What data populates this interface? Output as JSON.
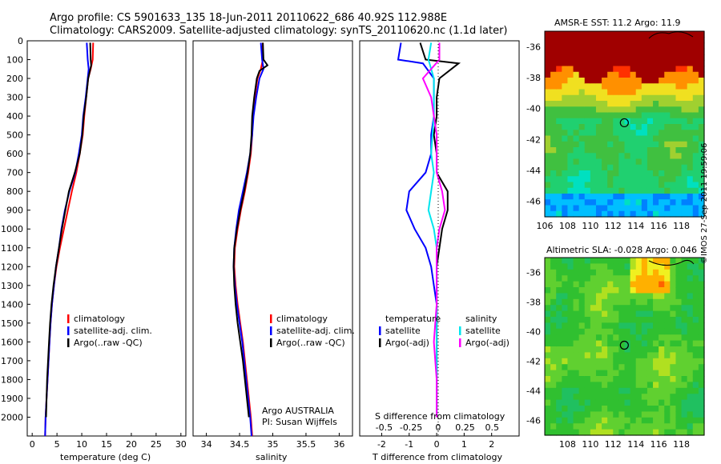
{
  "title_line1": "Argo profile: CS 5901633_135 18-Jun-2011 20110622_686 40.92S 112.988E",
  "title_line2": "Climatology: CARS2009. Satellite-adjusted climatology: synTS_20110620.nc (1.1d later)",
  "stamp": "©IMOS 27-Sep-2011 19:59:06",
  "colors": {
    "climatology": "#ff0000",
    "satellite": "#0000ff",
    "argo": "#000000",
    "sat_salinity": "#00e5ee",
    "argo_salinity_adj": "#ff00ff"
  },
  "legend": {
    "climatology": "climatology",
    "satellite_adj": "satellite-adj. clim.",
    "argo_raw": "Argo(..raw -QC)",
    "temperature_head": "temperature",
    "salinity_head": "salinity",
    "satellite": "satellite",
    "argo_adj": "Argo(-adj)"
  },
  "argo_note": {
    "line1": "Argo AUSTRALIA",
    "line2": "PI: Susan Wijffels"
  },
  "chart_data": [
    {
      "type": "line",
      "xlabel": "temperature (deg C)",
      "xlim": [
        -1,
        31
      ],
      "ylim": [
        2100,
        0
      ],
      "xticks": [
        0,
        5,
        10,
        15,
        20,
        25,
        30
      ],
      "yticks": [
        0,
        100,
        200,
        300,
        400,
        500,
        600,
        700,
        800,
        900,
        1000,
        1100,
        1200,
        1300,
        1400,
        1500,
        1600,
        1700,
        1800,
        1900,
        2000
      ],
      "series": [
        {
          "name": "climatology",
          "color": "#ff0000",
          "points": [
            [
              12.3,
              10
            ],
            [
              12.2,
              100
            ],
            [
              11.8,
              150
            ],
            [
              11.3,
              200
            ],
            [
              10.9,
              300
            ],
            [
              10.5,
              400
            ],
            [
              10.2,
              500
            ],
            [
              9.6,
              600
            ],
            [
              8.9,
              700
            ],
            [
              8.0,
              800
            ],
            [
              7.2,
              900
            ],
            [
              6.4,
              1000
            ],
            [
              5.6,
              1100
            ],
            [
              4.9,
              1200
            ],
            [
              4.4,
              1300
            ],
            [
              4.0,
              1400
            ],
            [
              3.7,
              1500
            ],
            [
              3.5,
              1600
            ],
            [
              3.3,
              1700
            ],
            [
              3.1,
              1800
            ],
            [
              2.9,
              1900
            ],
            [
              2.7,
              2000
            ],
            [
              2.6,
              2100
            ]
          ]
        },
        {
          "name": "satellite-adj. clim.",
          "color": "#0000ff",
          "points": [
            [
              11.0,
              10
            ],
            [
              11.2,
              100
            ],
            [
              11.4,
              150
            ],
            [
              11.2,
              200
            ],
            [
              10.8,
              300
            ],
            [
              10.3,
              400
            ],
            [
              10.0,
              500
            ],
            [
              9.4,
              600
            ],
            [
              8.7,
              700
            ],
            [
              7.5,
              800
            ],
            [
              6.6,
              900
            ],
            [
              5.9,
              1000
            ],
            [
              5.4,
              1100
            ],
            [
              4.8,
              1200
            ],
            [
              4.4,
              1300
            ],
            [
              4.0,
              1400
            ],
            [
              3.7,
              1500
            ],
            [
              3.5,
              1600
            ],
            [
              3.3,
              1700
            ],
            [
              3.1,
              1800
            ],
            [
              2.9,
              1900
            ],
            [
              2.7,
              2000
            ],
            [
              2.6,
              2100
            ]
          ]
        },
        {
          "name": "Argo(..raw -QC)",
          "color": "#000000",
          "points": [
            [
              11.7,
              10
            ],
            [
              11.8,
              100
            ],
            [
              11.9,
              130
            ],
            [
              11.3,
              200
            ],
            [
              10.9,
              300
            ],
            [
              10.4,
              400
            ],
            [
              10.1,
              500
            ],
            [
              9.6,
              600
            ],
            [
              8.6,
              700
            ],
            [
              7.4,
              800
            ],
            [
              6.7,
              900
            ],
            [
              6.0,
              1000
            ],
            [
              5.4,
              1100
            ],
            [
              4.8,
              1200
            ],
            [
              4.3,
              1300
            ],
            [
              3.9,
              1400
            ],
            [
              3.6,
              1500
            ],
            [
              3.4,
              1600
            ],
            [
              3.2,
              1700
            ],
            [
              3.0,
              1800
            ],
            [
              2.9,
              1900
            ],
            [
              2.8,
              2000
            ]
          ]
        }
      ]
    },
    {
      "type": "line",
      "xlabel": "salinity",
      "xlim": [
        33.8,
        36.2
      ],
      "ylim": [
        2100,
        0
      ],
      "xticks": [
        34,
        34.5,
        35,
        35.5,
        36
      ],
      "series": [
        {
          "name": "climatology",
          "color": "#ff0000",
          "points": [
            [
              34.85,
              10
            ],
            [
              34.85,
              100
            ],
            [
              34.82,
              150
            ],
            [
              34.77,
              200
            ],
            [
              34.73,
              300
            ],
            [
              34.7,
              400
            ],
            [
              34.69,
              500
            ],
            [
              34.67,
              600
            ],
            [
              34.63,
              700
            ],
            [
              34.58,
              800
            ],
            [
              34.52,
              900
            ],
            [
              34.47,
              1000
            ],
            [
              34.43,
              1100
            ],
            [
              34.42,
              1200
            ],
            [
              34.44,
              1300
            ],
            [
              34.47,
              1400
            ],
            [
              34.51,
              1500
            ],
            [
              34.55,
              1600
            ],
            [
              34.58,
              1700
            ],
            [
              34.61,
              1800
            ],
            [
              34.64,
              1900
            ],
            [
              34.67,
              2000
            ],
            [
              34.69,
              2100
            ]
          ]
        },
        {
          "name": "satellite-adj. clim.",
          "color": "#0000ff",
          "points": [
            [
              34.82,
              10
            ],
            [
              34.84,
              100
            ],
            [
              34.86,
              150
            ],
            [
              34.8,
              200
            ],
            [
              34.75,
              300
            ],
            [
              34.71,
              400
            ],
            [
              34.69,
              500
            ],
            [
              34.66,
              600
            ],
            [
              34.61,
              700
            ],
            [
              34.55,
              800
            ],
            [
              34.49,
              900
            ],
            [
              34.45,
              1000
            ],
            [
              34.42,
              1100
            ],
            [
              34.41,
              1200
            ],
            [
              34.43,
              1300
            ],
            [
              34.46,
              1400
            ],
            [
              34.5,
              1500
            ],
            [
              34.54,
              1600
            ],
            [
              34.57,
              1700
            ],
            [
              34.6,
              1800
            ],
            [
              34.63,
              1900
            ],
            [
              34.66,
              2000
            ],
            [
              34.68,
              2100
            ]
          ]
        },
        {
          "name": "Argo(..raw -QC)",
          "color": "#000000",
          "points": [
            [
              34.85,
              10
            ],
            [
              34.86,
              100
            ],
            [
              34.92,
              130
            ],
            [
              34.8,
              160
            ],
            [
              34.76,
              200
            ],
            [
              34.72,
              300
            ],
            [
              34.69,
              400
            ],
            [
              34.68,
              500
            ],
            [
              34.66,
              600
            ],
            [
              34.62,
              700
            ],
            [
              34.57,
              800
            ],
            [
              34.51,
              900
            ],
            [
              34.46,
              1000
            ],
            [
              34.42,
              1100
            ],
            [
              34.41,
              1200
            ],
            [
              34.42,
              1300
            ],
            [
              34.44,
              1400
            ],
            [
              34.47,
              1500
            ],
            [
              34.51,
              1600
            ],
            [
              34.55,
              1700
            ],
            [
              34.58,
              1800
            ],
            [
              34.61,
              1900
            ],
            [
              34.64,
              2000
            ]
          ]
        }
      ]
    },
    {
      "type": "line",
      "xlabel": "T difference from climatology",
      "xlabel_top": "S difference from climatology",
      "xlim": [
        -2.8,
        3.0
      ],
      "ylim": [
        2100,
        0
      ],
      "xticks": [
        -2,
        -1,
        0,
        1,
        2
      ],
      "xticks_top": [
        "-0.5",
        "-0.25",
        "0",
        "0.25",
        "0.5"
      ],
      "series": [
        {
          "name": "temperature satellite",
          "color": "#0000ff",
          "points": [
            [
              -1.3,
              10
            ],
            [
              -1.4,
              100
            ],
            [
              -0.5,
              120
            ],
            [
              -0.1,
              200
            ],
            [
              -0.1,
              300
            ],
            [
              -0.1,
              400
            ],
            [
              -0.2,
              500
            ],
            [
              -0.2,
              600
            ],
            [
              -0.4,
              700
            ],
            [
              -1.0,
              800
            ],
            [
              -1.1,
              900
            ],
            [
              -0.8,
              1000
            ],
            [
              -0.4,
              1100
            ],
            [
              -0.2,
              1200
            ],
            [
              -0.1,
              1300
            ],
            [
              0.0,
              1400
            ],
            [
              0.0,
              1500
            ],
            [
              0.0,
              1600
            ],
            [
              0.0,
              1700
            ],
            [
              0.0,
              1800
            ],
            [
              0.0,
              1900
            ],
            [
              0.0,
              2000
            ]
          ]
        },
        {
          "name": "temperature Argo(-adj)",
          "color": "#000000",
          "points": [
            [
              -0.6,
              10
            ],
            [
              -0.4,
              100
            ],
            [
              0.8,
              120
            ],
            [
              0.1,
              200
            ],
            [
              0.0,
              300
            ],
            [
              0.0,
              400
            ],
            [
              -0.1,
              500
            ],
            [
              0.0,
              600
            ],
            [
              0.0,
              700
            ],
            [
              0.4,
              800
            ],
            [
              0.4,
              900
            ],
            [
              0.2,
              1000
            ],
            [
              0.1,
              1100
            ],
            [
              0.0,
              1200
            ],
            [
              0.0,
              1300
            ],
            [
              0.0,
              1400
            ],
            [
              0.0,
              1500
            ],
            [
              0.0,
              1600
            ],
            [
              0.0,
              1700
            ],
            [
              0.0,
              1800
            ],
            [
              0.0,
              1900
            ],
            [
              0.0,
              2000
            ]
          ]
        },
        {
          "name": "salinity satellite",
          "color": "#00e5ee",
          "points": [
            [
              -0.2,
              10
            ],
            [
              -0.3,
              100
            ],
            [
              -0.1,
              200
            ],
            [
              -0.1,
              400
            ],
            [
              -0.2,
              600
            ],
            [
              -0.1,
              700
            ],
            [
              -0.2,
              800
            ],
            [
              -0.3,
              900
            ],
            [
              -0.1,
              1000
            ],
            [
              0.0,
              1100
            ],
            [
              0.0,
              1500
            ],
            [
              0.0,
              2000
            ]
          ]
        },
        {
          "name": "salinity Argo(-adj)",
          "color": "#ff00ff",
          "points": [
            [
              0.1,
              10
            ],
            [
              0.1,
              100
            ],
            [
              -0.5,
              200
            ],
            [
              -0.2,
              300
            ],
            [
              -0.1,
              400
            ],
            [
              0.0,
              500
            ],
            [
              0.0,
              700
            ],
            [
              0.2,
              800
            ],
            [
              0.3,
              900
            ],
            [
              0.1,
              1000
            ],
            [
              0.0,
              1100
            ],
            [
              0.0,
              1400
            ],
            [
              -0.1,
              1600
            ],
            [
              0.0,
              1800
            ],
            [
              0.0,
              2000
            ]
          ]
        }
      ]
    },
    {
      "type": "heatmap",
      "title": "AMSR-E SST: 11.2 Argo: 11.9",
      "xticks": [
        "106",
        "108",
        "110",
        "112",
        "114",
        "116",
        "118"
      ],
      "yticks": [
        "-36",
        "-38",
        "-40",
        "-42",
        "-44",
        "-46"
      ],
      "xlim": [
        106,
        120
      ],
      "ylim": [
        -47,
        -35
      ],
      "argo_position": [
        112.988,
        -40.92
      ]
    },
    {
      "type": "heatmap",
      "title": "Altimetric SLA: -0.028 Argo: 0.046",
      "xticks": [
        "108",
        "110",
        "112",
        "114",
        "116",
        "118"
      ],
      "yticks": [
        "-36",
        "-38",
        "-40",
        "-42",
        "-44",
        "-46"
      ],
      "xlim": [
        106,
        120
      ],
      "ylim": [
        -47,
        -35
      ],
      "argo_position": [
        112.988,
        -40.92
      ]
    }
  ]
}
